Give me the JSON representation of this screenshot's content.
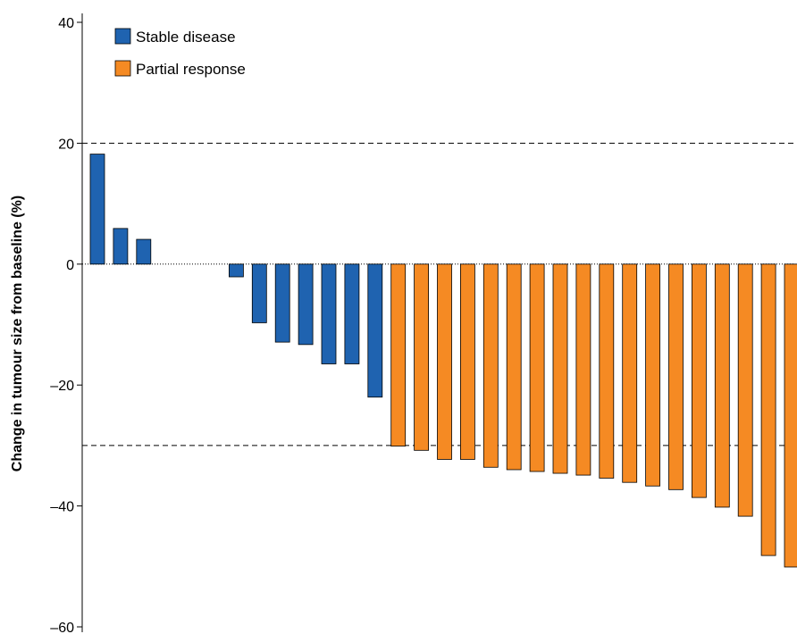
{
  "chart_data": {
    "type": "bar",
    "title": "",
    "xlabel": "",
    "ylabel": "Change in tumour size from baseline (%)",
    "ylim": [
      -60,
      40
    ],
    "yticks": [
      40,
      20,
      0,
      -20,
      -40,
      -60
    ],
    "ytick_labels": [
      "40",
      "20",
      "0",
      "–20",
      "–40",
      "–60"
    ],
    "reference_lines": [
      20,
      -30
    ],
    "zero_line": "dotted",
    "grid": false,
    "legend": "top-left",
    "series": [
      {
        "name": "Stable disease",
        "color": "#1f63b0",
        "values": [
          18.2,
          5.9,
          4.1,
          0,
          0,
          0,
          -2.1,
          -9.7,
          -12.9,
          -13.3,
          -16.5,
          -16.5,
          -22.0
        ]
      },
      {
        "name": "Partial response",
        "color": "#f58a23",
        "values": [
          -30.1,
          -30.8,
          -32.3,
          -32.3,
          -33.6,
          -34.0,
          -34.3,
          -34.6,
          -34.9,
          -35.4,
          -36.1,
          -36.7,
          -37.3,
          -38.6,
          -40.2,
          -41.7,
          -48.2,
          -50.1
        ]
      }
    ]
  }
}
